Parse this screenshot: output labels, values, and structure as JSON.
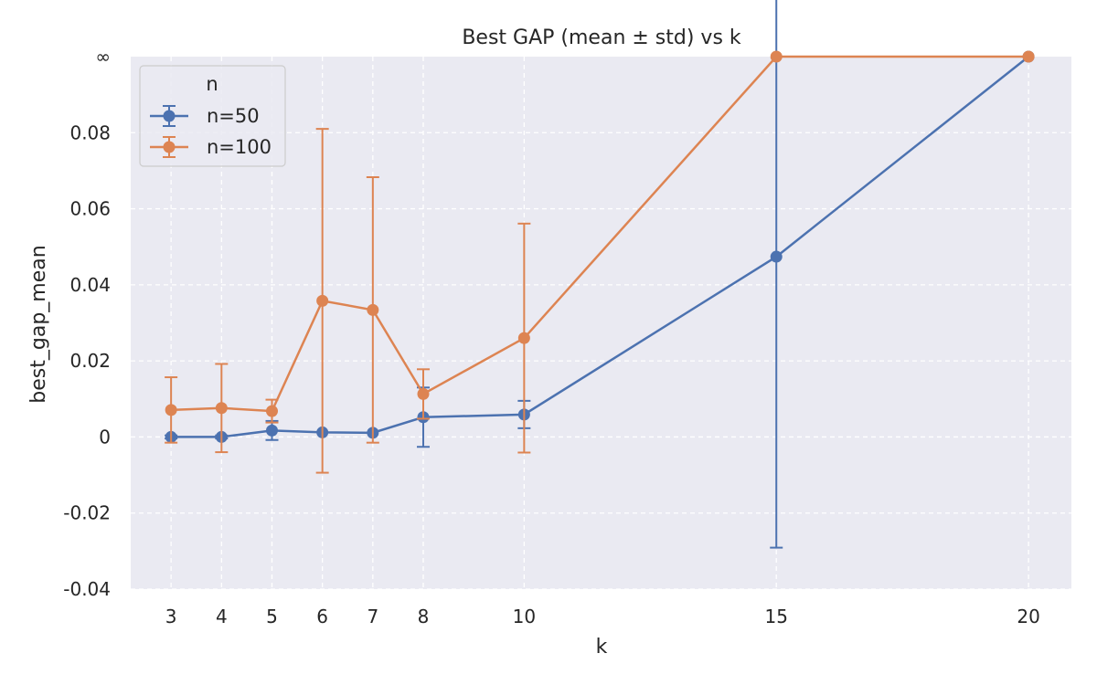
{
  "chart_data": {
    "type": "line",
    "title": "Best GAP (mean ± std) vs k",
    "xlabel": "k",
    "ylabel": "best_gap_mean",
    "x": [
      3,
      4,
      5,
      6,
      7,
      8,
      10,
      15,
      20
    ],
    "x_tick_labels": [
      "3",
      "4",
      "5",
      "6",
      "7",
      "8",
      "10",
      "15",
      "20"
    ],
    "y_ticks": [
      -0.04,
      -0.02,
      0,
      0.02,
      0.04,
      0.06,
      0.08
    ],
    "y_tick_labels": [
      "-0.04",
      "-0.02",
      "0",
      "0.02",
      "0.04",
      "0.06",
      "0.08"
    ],
    "y_infinity_label": "∞",
    "ylim": [
      -0.04,
      0.1
    ],
    "infinity_value": 0.1,
    "grid": true,
    "legend": {
      "title": "n",
      "placement": "top-left"
    },
    "series": [
      {
        "name": "n=50",
        "color": "#4c72b0",
        "values": [
          0.0,
          0.0,
          0.0017,
          0.0012,
          0.0011,
          0.0052,
          0.0059,
          0.0474,
          0.1
        ],
        "std": [
          0.0004,
          0.0004,
          0.0025,
          0.0,
          0.0,
          0.0078,
          0.0036,
          0.0765,
          0
        ]
      },
      {
        "name": "n=100",
        "color": "#dd8452",
        "values": [
          0.0071,
          0.0076,
          0.0068,
          0.0358,
          0.0334,
          0.0113,
          0.026,
          0.1,
          0.1
        ],
        "std": [
          0.0086,
          0.0116,
          0.003,
          0.0452,
          0.0349,
          0.0065,
          0.0301,
          0,
          0
        ]
      }
    ]
  }
}
